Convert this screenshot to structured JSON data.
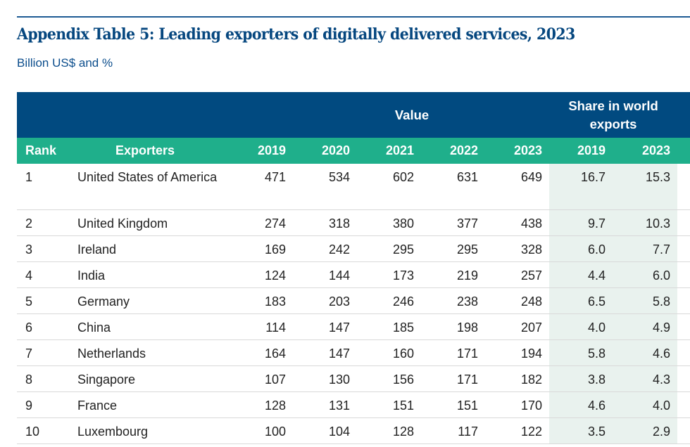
{
  "title": "Appendix Table 5: Leading exporters of digitally delivered services, 2023",
  "subtitle": "Billion US$ and %",
  "header": {
    "group_value": "Value",
    "group_share": "Share in world exports",
    "rank": "Rank",
    "exporters": "Exporters",
    "value_years": [
      "2019",
      "2020",
      "2021",
      "2022",
      "2023"
    ],
    "share_years": [
      "2019",
      "2023"
    ]
  },
  "rows": [
    {
      "rank": "1",
      "name": "United States of America",
      "values": [
        "471",
        "534",
        "602",
        "631",
        "649"
      ],
      "share": [
        "16.7",
        "15.3"
      ]
    },
    {
      "rank": "2",
      "name": "United Kingdom",
      "values": [
        "274",
        "318",
        "380",
        "377",
        "438"
      ],
      "share": [
        "9.7",
        "10.3"
      ]
    },
    {
      "rank": "3",
      "name": "Ireland",
      "values": [
        "169",
        "242",
        "295",
        "295",
        "328"
      ],
      "share": [
        "6.0",
        "7.7"
      ]
    },
    {
      "rank": "4",
      "name": "India",
      "values": [
        "124",
        "144",
        "173",
        "219",
        "257"
      ],
      "share": [
        "4.4",
        "6.0"
      ]
    },
    {
      "rank": "5",
      "name": "Germany",
      "values": [
        "183",
        "203",
        "246",
        "238",
        "248"
      ],
      "share": [
        "6.5",
        "5.8"
      ]
    },
    {
      "rank": "6",
      "name": "China",
      "values": [
        "114",
        "147",
        "185",
        "198",
        "207"
      ],
      "share": [
        "4.0",
        "4.9"
      ]
    },
    {
      "rank": "7",
      "name": "Netherlands",
      "values": [
        "164",
        "147",
        "160",
        "171",
        "194"
      ],
      "share": [
        "5.8",
        "4.6"
      ]
    },
    {
      "rank": "8",
      "name": "Singapore",
      "values": [
        "107",
        "130",
        "156",
        "171",
        "182"
      ],
      "share": [
        "3.8",
        "4.3"
      ]
    },
    {
      "rank": "9",
      "name": "France",
      "values": [
        "128",
        "131",
        "151",
        "151",
        "170"
      ],
      "share": [
        "4.6",
        "4.0"
      ]
    },
    {
      "rank": "10",
      "name": "Luxembourg",
      "values": [
        "100",
        "104",
        "128",
        "117",
        "122"
      ],
      "share": [
        "3.5",
        "2.9"
      ]
    }
  ]
}
